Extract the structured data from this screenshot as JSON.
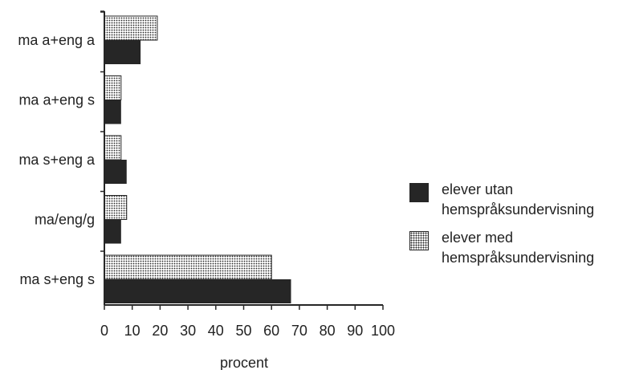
{
  "chart_data": {
    "type": "bar",
    "orientation": "horizontal",
    "categories": [
      "ma a+eng a",
      "ma a+eng s",
      "ma s+eng a",
      "ma/eng/g",
      "ma s+eng s"
    ],
    "series": [
      {
        "name": "elever utan\nhemspråksundervisning",
        "values": [
          13,
          6,
          8,
          6,
          67
        ],
        "color": "#262626",
        "pattern": "solid"
      },
      {
        "name": "elever med\nhemspråksundervisning",
        "values": [
          19,
          6,
          6,
          8,
          60
        ],
        "color": "#262626",
        "pattern": "dotted"
      }
    ],
    "xlabel": "procent",
    "xlim": [
      0,
      100
    ],
    "xticks": [
      0,
      10,
      20,
      30,
      40,
      50,
      60,
      70,
      80,
      90,
      100
    ],
    "grid": false,
    "legend_position": "right"
  }
}
